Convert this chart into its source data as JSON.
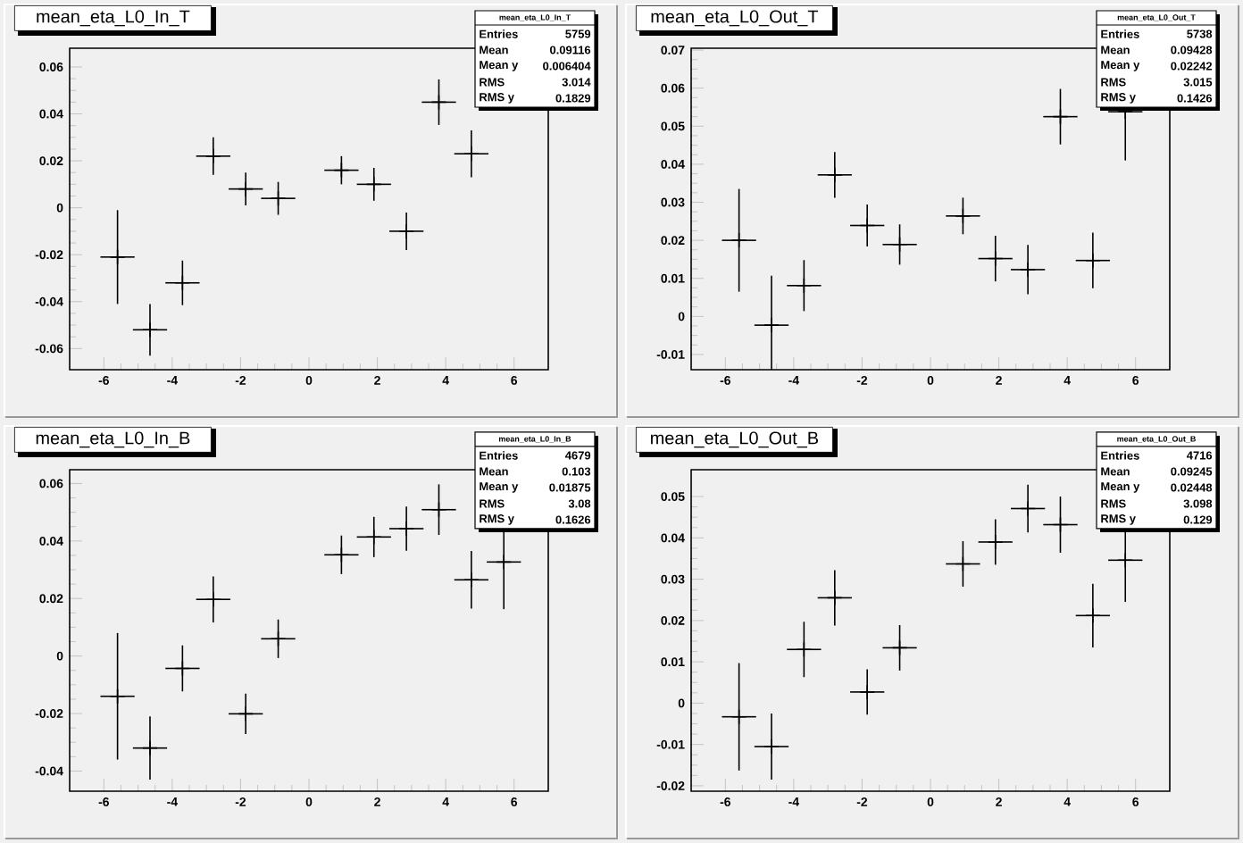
{
  "chart_data": [
    {
      "type": "scatter",
      "title": "mean_eta_L0_In_T",
      "marker": "cross",
      "annotations": [
        "mean_eta_L0_In_T",
        "Entries",
        "5759",
        "Mean",
        "0.09116",
        "Mean y",
        "0.006404",
        "RMS",
        "3.014",
        "RMS y",
        "0.1829"
      ],
      "x": [
        -5.6,
        -4.65,
        -3.7,
        -2.8,
        -1.85,
        -0.9,
        0.95,
        1.9,
        2.85,
        3.8,
        4.75
      ],
      "values": [
        -0.021,
        -0.052,
        -0.032,
        0.022,
        0.008,
        0.004,
        0.016,
        0.01,
        -0.01,
        0.045,
        0.023
      ],
      "errors": [
        0.02,
        0.011,
        0.0095,
        0.008,
        0.007,
        0.007,
        0.006,
        0.007,
        0.008,
        0.0097,
        0.01
      ],
      "xerrors": [
        0.5,
        0.5,
        0.5,
        0.5,
        0.5,
        0.5,
        0.5,
        0.5,
        0.5,
        0.5,
        0.5
      ],
      "xlim": [
        -7,
        7
      ],
      "ylim": [
        -0.069,
        0.068
      ],
      "xticks": [
        -6,
        -4,
        -2,
        0,
        2,
        4,
        6
      ],
      "yticks": [
        -0.06,
        -0.04,
        -0.02,
        0,
        0.02,
        0.04,
        0.06
      ]
    },
    {
      "type": "scatter",
      "title": "mean_eta_L0_Out_T",
      "marker": "cross",
      "annotations": [
        "mean_eta_L0_Out_T",
        "Entries",
        "5738",
        "Mean",
        "0.09428",
        "Mean y",
        "0.02242",
        "RMS",
        "3.015",
        "RMS y",
        "0.1426"
      ],
      "x": [
        -5.6,
        -4.65,
        -3.7,
        -2.8,
        -1.85,
        -0.9,
        0.95,
        1.9,
        2.85,
        3.8,
        4.75,
        5.7
      ],
      "values": [
        0.02,
        -0.0023,
        0.0081,
        0.0372,
        0.0239,
        0.0189,
        0.0264,
        0.0152,
        0.0123,
        0.0525,
        0.0147,
        0.0538
      ],
      "errors": [
        0.0135,
        0.013,
        0.0067,
        0.006,
        0.0055,
        0.0053,
        0.0048,
        0.006,
        0.0065,
        0.0073,
        0.0073,
        0.0128
      ],
      "xerrors": [
        0.5,
        0.5,
        0.5,
        0.5,
        0.5,
        0.5,
        0.5,
        0.5,
        0.5,
        0.5,
        0.5,
        0.5
      ],
      "xlim": [
        -7,
        7
      ],
      "ylim": [
        -0.014,
        0.0705
      ],
      "xticks": [
        -6,
        -4,
        -2,
        0,
        2,
        4,
        6
      ],
      "yticks": [
        -0.01,
        0,
        0.01,
        0.02,
        0.03,
        0.04,
        0.05,
        0.06,
        0.07
      ]
    },
    {
      "type": "scatter",
      "title": "mean_eta_L0_In_B",
      "marker": "cross",
      "annotations": [
        "mean_eta_L0_In_B",
        "Entries",
        "4679",
        "Mean",
        "0.103",
        "Mean y",
        "0.01875",
        "RMS",
        "3.08",
        "RMS y",
        "0.1626"
      ],
      "x": [
        -5.6,
        -4.65,
        -3.7,
        -2.8,
        -1.85,
        -0.9,
        0.95,
        1.9,
        2.85,
        3.8,
        4.75,
        5.7
      ],
      "values": [
        -0.014,
        -0.032,
        -0.0043,
        0.0197,
        -0.0201,
        0.006,
        0.0352,
        0.0414,
        0.0443,
        0.0509,
        0.0265,
        0.0327
      ],
      "errors": [
        0.022,
        0.011,
        0.008,
        0.008,
        0.007,
        0.0067,
        0.0067,
        0.007,
        0.0077,
        0.0088,
        0.01,
        0.0164
      ],
      "xerrors": [
        0.5,
        0.5,
        0.5,
        0.5,
        0.5,
        0.5,
        0.5,
        0.5,
        0.5,
        0.5,
        0.5,
        0.5
      ],
      "xlim": [
        -7,
        7
      ],
      "ylim": [
        -0.047,
        0.0648
      ],
      "xticks": [
        -6,
        -4,
        -2,
        0,
        2,
        4,
        6
      ],
      "yticks": [
        -0.04,
        -0.02,
        0,
        0.02,
        0.04,
        0.06
      ]
    },
    {
      "type": "scatter",
      "title": "mean_eta_L0_Out_B",
      "marker": "cross",
      "annotations": [
        "mean_eta_L0_Out_B",
        "Entries",
        "4716",
        "Mean",
        "0.09245",
        "Mean y",
        "0.02448",
        "RMS",
        "3.098",
        "RMS y",
        "0.129"
      ],
      "x": [
        -5.6,
        -4.65,
        -3.7,
        -2.8,
        -1.85,
        -0.9,
        0.95,
        1.9,
        2.85,
        3.8,
        4.75,
        5.7
      ],
      "values": [
        -0.0033,
        -0.0105,
        0.013,
        0.0255,
        0.0027,
        0.0134,
        0.0337,
        0.039,
        0.0471,
        0.0432,
        0.0212,
        0.0346
      ],
      "errors": [
        0.013,
        0.008,
        0.0067,
        0.0067,
        0.0055,
        0.0055,
        0.0055,
        0.0055,
        0.0058,
        0.0068,
        0.0077,
        0.0101
      ],
      "xerrors": [
        0.5,
        0.5,
        0.5,
        0.5,
        0.5,
        0.5,
        0.5,
        0.5,
        0.5,
        0.5,
        0.5,
        0.5
      ],
      "xlim": [
        -7,
        7
      ],
      "ylim": [
        -0.0213,
        0.0565
      ],
      "xticks": [
        -6,
        -4,
        -2,
        0,
        2,
        4,
        6
      ],
      "yticks": [
        -0.02,
        -0.01,
        0,
        0.01,
        0.02,
        0.03,
        0.04,
        0.05
      ]
    }
  ]
}
